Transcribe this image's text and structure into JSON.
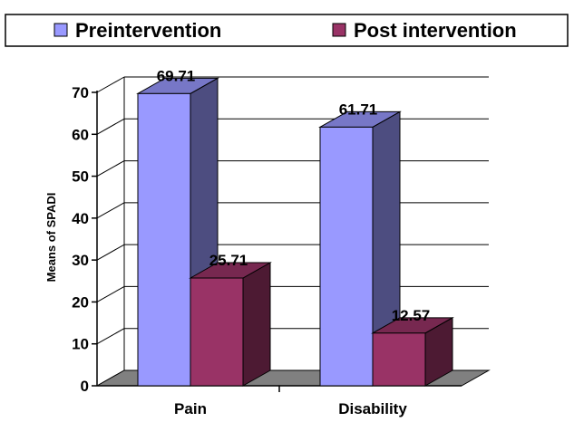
{
  "chart_data": {
    "type": "bar",
    "style": "3d-clustered-column",
    "categories": [
      "Pain",
      "Disability"
    ],
    "series": [
      {
        "name": "Preintervention",
        "values": [
          69.71,
          61.71
        ],
        "color": "#9999ff"
      },
      {
        "name": "Post intervention",
        "values": [
          25.71,
          12.57
        ],
        "color": "#993366"
      }
    ],
    "data_labels": [
      [
        "69.71",
        "61.71"
      ],
      [
        "25.71",
        "12.57"
      ]
    ],
    "ylabel": "Means of SPADI",
    "xlabel": "",
    "ylim": [
      0,
      70
    ],
    "yticks": [
      0,
      10,
      20,
      30,
      40,
      50,
      60,
      70
    ],
    "grid": true,
    "legend_position": "top"
  }
}
